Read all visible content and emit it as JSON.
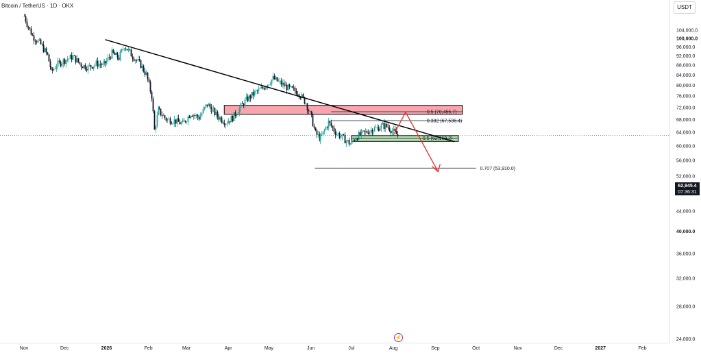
{
  "header": {
    "symbol": "Bitcoin / TetherUS",
    "separator1": " · ",
    "interval": "1D",
    "separator2": " · ",
    "exchange": "OKX"
  },
  "currency_label": "USDT",
  "last_price": {
    "value": "62,945.4",
    "countdown": "07:36:31"
  },
  "toolbar": {
    "bolt_glyph": "⚡"
  },
  "colors": {
    "up": "#26a69a",
    "down": "#131722",
    "resistance_zone": "#f8a5ae",
    "support_zone": "#b7e1b5",
    "projection": "#e53935",
    "trendline": "#000000",
    "bolt": "#9c27b0"
  },
  "chart_data": {
    "type": "candlestick",
    "title": "",
    "y_axis": {
      "scale": "log",
      "range": [
        24000,
        112000
      ],
      "ticks": [
        "104,000.0",
        "100,000.0",
        "96,000.0",
        "92,000.0",
        "88,000.0",
        "84,000.0",
        "80,000.0",
        "76,000.0",
        "72,000.0",
        "68,000.0",
        "64,000.0",
        "60,000.0",
        "56,000.0",
        "52,000.0",
        "48,000.0",
        "44,000.0",
        "40,000.0",
        "36,000.0",
        "32,000.0",
        "28,000.0",
        "24,000.0"
      ],
      "tick_values": [
        104000,
        100000,
        96000,
        92000,
        88000,
        84000,
        80000,
        76000,
        72000,
        68000,
        64000,
        60000,
        56000,
        52000,
        48000,
        44000,
        40000,
        36000,
        32000,
        28000,
        24000
      ],
      "bold_ticks": [
        "100,000.0",
        "40,000.0"
      ]
    },
    "x_axis": {
      "range": [
        "2025-11-01",
        "2027-02-20"
      ],
      "labels": [
        "Nov",
        "Dec",
        "2026",
        "Feb",
        "Mar",
        "Apr",
        "May",
        "Jun",
        "Jul",
        "Aug",
        "Sep",
        "Oct",
        "Nov",
        "Dec",
        "2027",
        "Feb"
      ],
      "label_dates": [
        "2025-11-01",
        "2025-12-01",
        "2026-01-01",
        "2026-02-01",
        "2026-03-01",
        "2026-04-01",
        "2026-05-01",
        "2026-06-01",
        "2026-07-01",
        "2026-08-01",
        "2026-09-01",
        "2026-10-01",
        "2026-11-01",
        "2026-12-01",
        "2027-01-01",
        "2027-02-01"
      ],
      "bold_labels": [
        "2026",
        "2027"
      ]
    },
    "price_path": [
      [
        "2025-11-01",
        111000
      ],
      [
        "2025-11-03",
        107000
      ],
      [
        "2025-11-07",
        101000
      ],
      [
        "2025-11-13",
        97000
      ],
      [
        "2025-11-18",
        92000
      ],
      [
        "2025-11-21",
        85000
      ],
      [
        "2025-11-25",
        88000
      ],
      [
        "2025-12-01",
        90000
      ],
      [
        "2025-12-07",
        91500
      ],
      [
        "2025-12-13",
        88000
      ],
      [
        "2025-12-18",
        87000
      ],
      [
        "2025-12-24",
        88500
      ],
      [
        "2025-12-30",
        88000
      ],
      [
        "2026-01-05",
        93000
      ],
      [
        "2026-01-10",
        91000
      ],
      [
        "2026-01-14",
        96500
      ],
      [
        "2026-01-19",
        92500
      ],
      [
        "2026-01-26",
        88000
      ],
      [
        "2026-01-30",
        84000
      ],
      [
        "2026-02-03",
        76000
      ],
      [
        "2026-02-05",
        64500
      ],
      [
        "2026-02-08",
        71000
      ],
      [
        "2026-02-14",
        68000
      ],
      [
        "2026-02-20",
        67500
      ],
      [
        "2026-02-26",
        66500
      ],
      [
        "2026-03-04",
        70000
      ],
      [
        "2026-03-10",
        68500
      ],
      [
        "2026-03-16",
        73000
      ],
      [
        "2026-03-20",
        71000
      ],
      [
        "2026-03-24",
        69000
      ],
      [
        "2026-03-30",
        67000
      ],
      [
        "2026-04-04",
        68500
      ],
      [
        "2026-04-09",
        71500
      ],
      [
        "2026-04-14",
        74500
      ],
      [
        "2026-04-20",
        77000
      ],
      [
        "2026-04-25",
        78500
      ],
      [
        "2026-04-30",
        80500
      ],
      [
        "2026-05-04",
        82500
      ],
      [
        "2026-05-10",
        80500
      ],
      [
        "2026-05-16",
        78500
      ],
      [
        "2026-05-22",
        77500
      ],
      [
        "2026-05-28",
        73500
      ],
      [
        "2026-06-01",
        68500
      ],
      [
        "2026-06-04",
        63500
      ],
      [
        "2026-06-08",
        62000
      ],
      [
        "2026-06-14",
        67000
      ],
      [
        "2026-06-19",
        64000
      ],
      [
        "2026-06-25",
        62000
      ],
      [
        "2026-06-30",
        60500
      ],
      [
        "2026-07-04",
        62500
      ],
      [
        "2026-07-09",
        63500
      ],
      [
        "2026-07-14",
        64500
      ],
      [
        "2026-07-19",
        65000
      ],
      [
        "2026-07-24",
        66000
      ],
      [
        "2026-07-28",
        65500
      ],
      [
        "2026-08-01",
        64000
      ],
      [
        "2026-08-04",
        62945
      ]
    ],
    "current_price": 62945.4,
    "trendline": [
      [
        "2025-12-31",
        99200
      ],
      [
        "2026-09-15",
        61100
      ]
    ],
    "zones": [
      {
        "name": "resistance",
        "from": "2026-03-29",
        "to": "2026-09-21",
        "low": 69600,
        "high": 72600
      },
      {
        "name": "support",
        "from": "2026-07-01",
        "to": "2026-09-18",
        "low": 61200,
        "high": 62900
      }
    ],
    "fib_levels": [
      {
        "label": "0.5 (70,455.7)",
        "value": 70455.7,
        "from": "2026-06-16",
        "to": "2026-09-21"
      },
      {
        "label": "0.382 (67,536.4)",
        "value": 67536.4,
        "from": "2026-06-16",
        "to": "2026-09-21"
      },
      {
        "label": "0.5 (62,168.2)",
        "value": 62168.2,
        "from": "2026-07-01",
        "to": "2026-09-18"
      },
      {
        "label": "0.707 (53,910.0)",
        "value": 53910.0,
        "from": "2026-06-04",
        "to": "2026-10-01"
      }
    ],
    "projection": [
      [
        "2026-08-01",
        63000
      ],
      [
        "2026-08-10",
        70300
      ],
      [
        "2026-09-03",
        53000
      ]
    ]
  }
}
